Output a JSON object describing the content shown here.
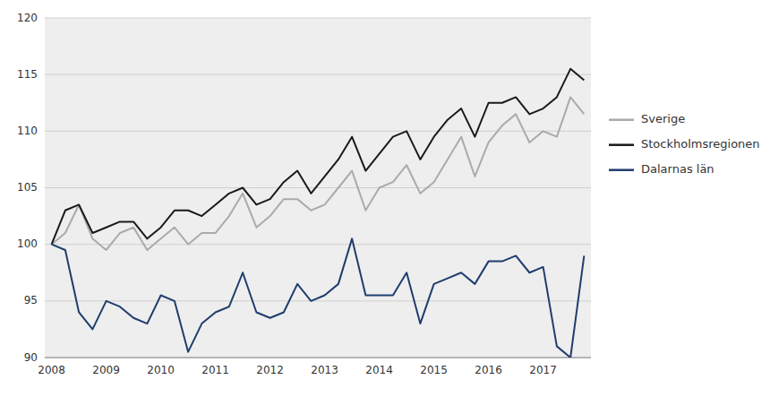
{
  "chart_data": {
    "type": "line",
    "categories": [
      "2008",
      null,
      null,
      null,
      "2009",
      null,
      null,
      null,
      "2010",
      null,
      null,
      null,
      "2011",
      null,
      null,
      null,
      "2012",
      null,
      null,
      null,
      "2013",
      null,
      null,
      null,
      "2014",
      null,
      null,
      null,
      "2015",
      null,
      null,
      null,
      "2016",
      null,
      null,
      null,
      "2017",
      null,
      null,
      null
    ],
    "series": [
      {
        "name": "Sverige",
        "color": "#aaaaaa",
        "values": [
          100.0,
          101.0,
          103.5,
          100.5,
          99.5,
          101.0,
          101.5,
          99.5,
          100.5,
          101.5,
          100.0,
          101.0,
          101.0,
          102.5,
          104.5,
          101.5,
          102.5,
          104.0,
          104.0,
          103.0,
          103.5,
          105.0,
          106.5,
          103.0,
          105.0,
          105.5,
          107.0,
          104.5,
          105.5,
          107.5,
          109.5,
          106.0,
          109.0,
          110.5,
          111.5,
          109.0,
          110.0,
          109.5,
          113.0,
          111.5
        ]
      },
      {
        "name": "Stockholmsregionen",
        "color": "#1a1a1a",
        "values": [
          100.0,
          103.0,
          103.5,
          101.0,
          101.5,
          102.0,
          102.0,
          100.5,
          101.5,
          103.0,
          103.0,
          102.5,
          103.5,
          104.5,
          105.0,
          103.5,
          104.0,
          105.5,
          106.5,
          104.5,
          106.0,
          107.5,
          109.5,
          106.5,
          108.0,
          109.5,
          110.0,
          107.5,
          109.5,
          111.0,
          112.0,
          109.5,
          112.5,
          112.5,
          113.0,
          111.5,
          112.0,
          113.0,
          115.5,
          114.5
        ]
      },
      {
        "name": "Dalarnas län",
        "color": "#1f3d6e",
        "values": [
          100.0,
          99.5,
          94.0,
          92.5,
          95.0,
          94.5,
          93.5,
          93.0,
          95.5,
          95.0,
          90.5,
          93.0,
          94.0,
          94.5,
          97.5,
          94.0,
          93.5,
          94.0,
          96.5,
          95.0,
          95.5,
          96.5,
          100.5,
          95.5,
          95.5,
          95.5,
          97.5,
          93.0,
          96.5,
          97.0,
          97.5,
          96.5,
          98.5,
          98.5,
          99.0,
          97.5,
          98.0,
          91.0,
          90.0,
          99.0
        ]
      }
    ],
    "ylim": [
      90,
      120
    ],
    "yticks": [
      90,
      95,
      100,
      105,
      110,
      115,
      120
    ],
    "grid": true,
    "legend": "right"
  }
}
